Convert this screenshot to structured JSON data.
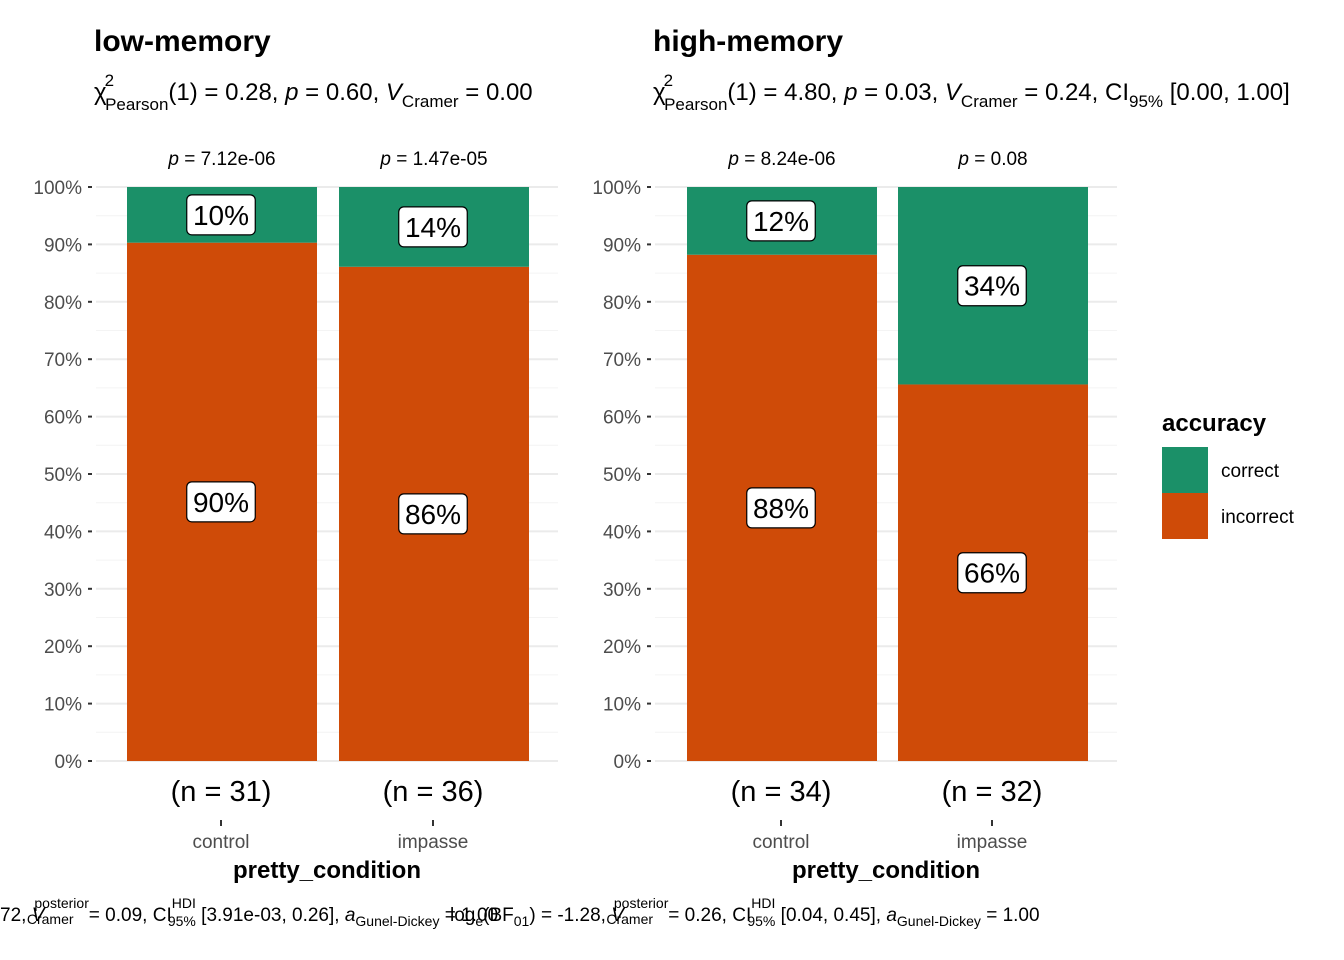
{
  "colors": {
    "correct": "#1b9068",
    "incorrect": "#cf4b08"
  },
  "legend": {
    "title": "accuracy",
    "placement": "right",
    "items": [
      {
        "key": "correct",
        "label": "correct",
        "color": "#1b9068"
      },
      {
        "key": "incorrect",
        "label": "incorrect",
        "color": "#cf4b08"
      }
    ]
  },
  "y_ticks": [
    "0%",
    "10%",
    "20%",
    "30%",
    "40%",
    "50%",
    "60%",
    "70%",
    "80%",
    "90%",
    "100%"
  ],
  "chart_data": [
    {
      "type": "bar",
      "stacked": true,
      "title": "low-memory",
      "subtitle": {
        "chi": "χ",
        "chi_sup": "2",
        "chi_sub": "Pearson",
        "df": "(1) = 0.28, ",
        "p_symbol": "p",
        "p_value": " = 0.60, ",
        "v_symbol": "V",
        "v_sub": "Cramer",
        "v_value": " = 0.00"
      },
      "xlabel": "pretty_condition",
      "ylabel": "",
      "ylim": [
        0,
        100
      ],
      "grid": true,
      "categories": [
        "control",
        "impasse"
      ],
      "n_labels": [
        "(n = 31)",
        "(n = 36)"
      ],
      "p_labels": [
        {
          "symbol": "p",
          "value": " = 7.12e-06"
        },
        {
          "symbol": "p",
          "value": " = 1.47e-05"
        }
      ],
      "series": [
        {
          "name": "incorrect",
          "values": [
            90.3,
            86.1
          ],
          "labels": [
            "90%",
            "86%"
          ]
        },
        {
          "name": "correct",
          "values": [
            9.7,
            13.9
          ],
          "labels": [
            "10%",
            "14%"
          ]
        }
      ],
      "caption": {
        "bf_value": "72, ",
        "v_symbol": "V",
        "v_sup": "posterior",
        "v_sub": "Cramer",
        "v_value": " = 0.09, CI",
        "ci_sup": "HDI",
        "ci_sub": "95%",
        "ci_value": " [3.91e-03, 0.26], ",
        "a_symbol": "a",
        "a_sub": "Gunel-Dickey",
        "a_value": " = 1.00"
      }
    },
    {
      "type": "bar",
      "stacked": true,
      "title": "high-memory",
      "subtitle": {
        "chi": "χ",
        "chi_sup": "2",
        "chi_sub": "Pearson",
        "df": "(1) = 4.80, ",
        "p_symbol": "p",
        "p_value": " = 0.03, ",
        "v_symbol": "V",
        "v_sub": "Cramer",
        "v_value": " = 0.24, CI",
        "ci_sub": "95%",
        "ci_value": " [0.00, 1.00]"
      },
      "xlabel": "pretty_condition",
      "ylabel": "",
      "ylim": [
        0,
        100
      ],
      "grid": true,
      "categories": [
        "control",
        "impasse"
      ],
      "n_labels": [
        "(n = 34)",
        "(n = 32)"
      ],
      "p_labels": [
        {
          "symbol": "p",
          "value": " = 8.24e-06"
        },
        {
          "symbol": "p",
          "value": " = 0.08"
        }
      ],
      "series": [
        {
          "name": "incorrect",
          "values": [
            88.2,
            65.6
          ],
          "labels": [
            "88%",
            "66%"
          ]
        },
        {
          "name": "correct",
          "values": [
            11.8,
            34.4
          ],
          "labels": [
            "12%",
            "34%"
          ]
        }
      ],
      "caption": {
        "log": "log",
        "log_sub": "e",
        "bf": "(BF",
        "bf_sub": "01",
        "bf_value": ") = -1.28, ",
        "v_symbol": "V",
        "v_sup": "posterior",
        "v_sub": "Cramer",
        "v_value": " = 0.26, CI",
        "ci_sup": "HDI",
        "ci_sub": "95%",
        "ci_value": " [0.04, 0.45], ",
        "a_symbol": "a",
        "a_sub": "Gunel-Dickey",
        "a_value": " = 1.00"
      }
    }
  ]
}
